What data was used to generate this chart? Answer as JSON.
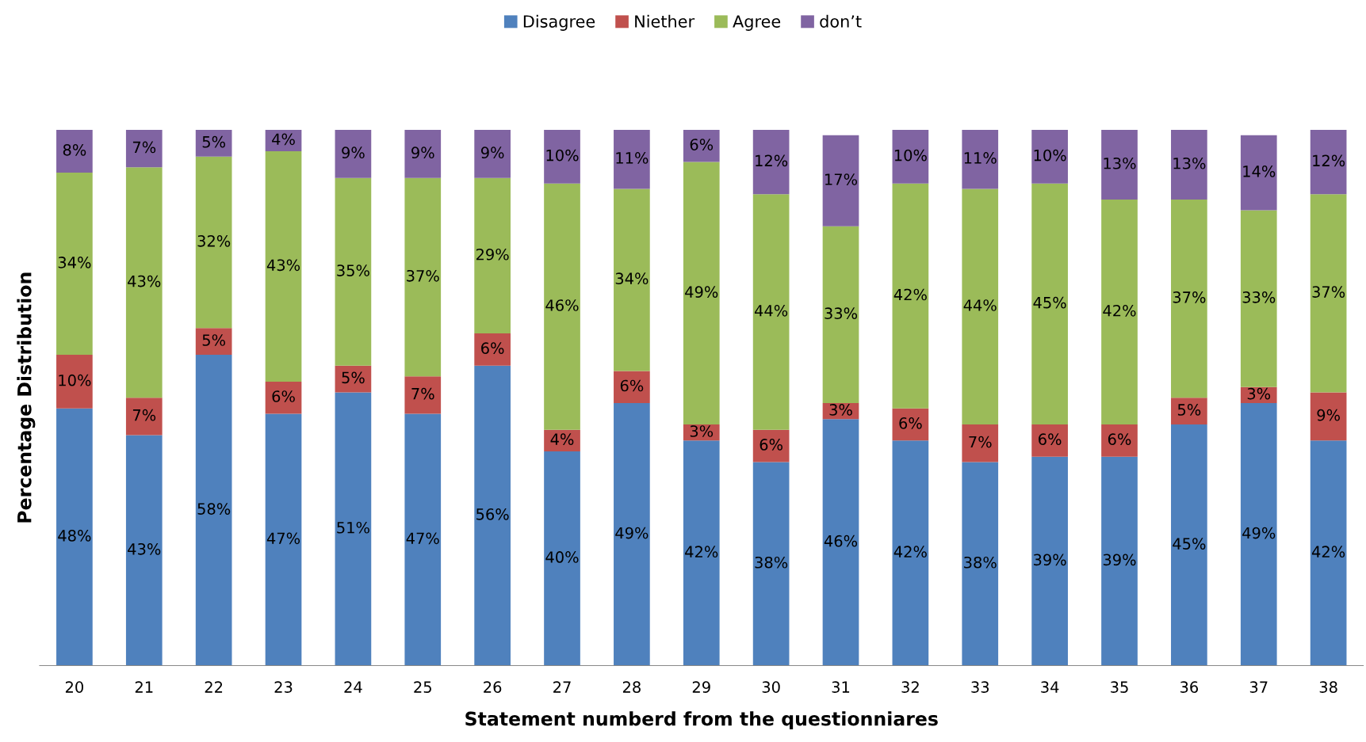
{
  "chart_data": {
    "type": "bar",
    "stacked": true,
    "xlabel": "Statement numberd from the questionniares",
    "ylabel": "Percentage Distribution",
    "legend": "top",
    "grid": false,
    "tick_labels": "x",
    "categories": [
      "20",
      "21",
      "22",
      "23",
      "24",
      "25",
      "26",
      "27",
      "28",
      "29",
      "30",
      "31",
      "32",
      "33",
      "34",
      "35",
      "36",
      "37",
      "38"
    ],
    "series": [
      {
        "name": "Disagree",
        "color": "#4f81bd",
        "values": [
          48,
          43,
          58,
          47,
          51,
          47,
          56,
          40,
          49,
          42,
          38,
          46,
          42,
          38,
          39,
          39,
          45,
          49,
          42
        ],
        "value_labels": [
          "48%",
          "43%",
          "58%",
          "47%",
          "51%",
          "47%",
          "56%",
          "40%",
          "49%",
          "42%",
          "38%",
          "46%",
          "42%",
          "38%",
          "39%",
          "39%",
          "45%",
          "49%",
          "42%"
        ]
      },
      {
        "name": "Niether",
        "color": "#c0504d",
        "values": [
          10,
          7,
          5,
          6,
          5,
          7,
          6,
          4,
          6,
          3,
          6,
          3,
          6,
          7,
          6,
          6,
          5,
          3,
          9
        ],
        "value_labels": [
          "10%",
          "7%",
          "5%",
          "6%",
          "5%",
          "7%",
          "6%",
          "4%",
          "6%",
          "3%",
          "6%",
          "3%",
          "6%",
          "7%",
          "6%",
          "6%",
          "5%",
          "3%",
          "9%"
        ]
      },
      {
        "name": "Agree",
        "color": "#9bbb59",
        "values": [
          34,
          43,
          32,
          43,
          35,
          37,
          29,
          46,
          34,
          49,
          44,
          33,
          42,
          44,
          45,
          42,
          37,
          33,
          37
        ],
        "value_labels": [
          "34%",
          "43%",
          "32%",
          "43%",
          "35%",
          "37%",
          "29%",
          "46%",
          "34%",
          "49%",
          "44%",
          "33%",
          "42%",
          "44%",
          "45%",
          "42%",
          "37%",
          "33%",
          "37%"
        ]
      },
      {
        "name": "don’t",
        "color": "#8064a2",
        "values": [
          8,
          7,
          5,
          4,
          9,
          9,
          9,
          10,
          11,
          6,
          12,
          17,
          10,
          11,
          10,
          13,
          13,
          14,
          12
        ],
        "value_labels": [
          "8%",
          "7%",
          "5%",
          "4%",
          "9%",
          "9%",
          "9%",
          "10%",
          "11%",
          "6%",
          "12%",
          "17%",
          "10%",
          "11%",
          "10%",
          "13%",
          "13%",
          "14%",
          "12%"
        ]
      }
    ]
  }
}
